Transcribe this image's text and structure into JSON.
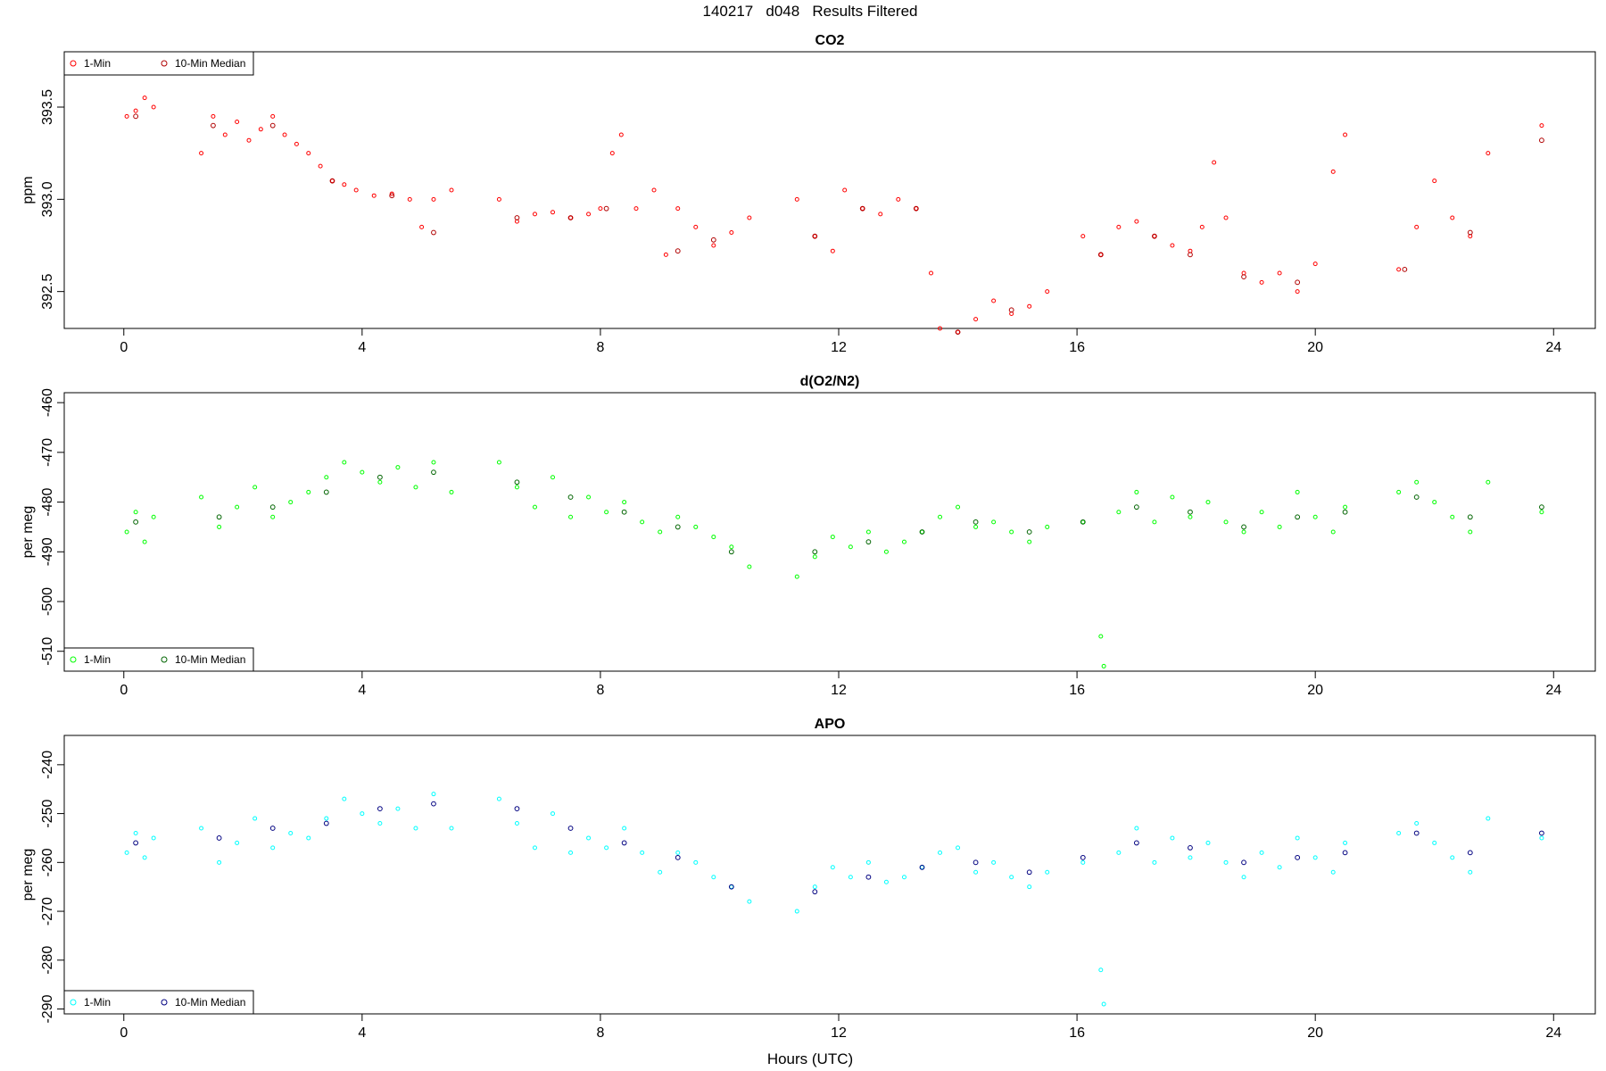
{
  "figure": {
    "title": "140217   d048   Results Filtered",
    "xlabel": "Hours (UTC)"
  },
  "chart_data": [
    {
      "type": "scatter",
      "title": "CO2",
      "ylabel": "ppm",
      "xlim": [
        -1,
        24.7
      ],
      "ylim": [
        392.3,
        393.8
      ],
      "yticks": [
        392.5,
        393.0,
        393.5
      ],
      "ytick_labels": [
        "392.5",
        "393.0",
        "393.5"
      ],
      "xticks": [
        0,
        4,
        8,
        12,
        16,
        20,
        24
      ],
      "legend": {
        "placement": "top-left",
        "entries": [
          "1-Min",
          "10-Min Median"
        ]
      },
      "series": [
        {
          "name": "1-Min",
          "color": "#ff0000",
          "x": [
            0.05,
            0.2,
            0.35,
            0.5,
            1.3,
            1.5,
            1.7,
            1.9,
            2.1,
            2.3,
            2.5,
            2.7,
            2.9,
            3.1,
            3.3,
            3.5,
            3.7,
            3.9,
            4.2,
            4.5,
            4.8,
            5.0,
            5.2,
            5.5,
            6.3,
            6.6,
            6.9,
            7.2,
            7.5,
            7.8,
            8.0,
            8.2,
            8.35,
            8.6,
            8.9,
            9.1,
            9.3,
            9.6,
            9.9,
            10.2,
            10.5,
            11.3,
            11.6,
            11.9,
            12.1,
            12.4,
            12.7,
            13.0,
            13.3,
            13.55,
            13.7,
            14.0,
            14.3,
            14.6,
            14.9,
            15.2,
            15.5,
            16.1,
            16.4,
            16.7,
            17.0,
            17.3,
            17.6,
            17.9,
            18.1,
            18.3,
            18.5,
            18.8,
            19.1,
            19.4,
            19.7,
            20.0,
            20.3,
            20.5,
            21.4,
            21.7,
            22.0,
            22.3,
            22.6,
            22.9,
            23.8
          ],
          "y": [
            393.45,
            393.48,
            393.55,
            393.5,
            393.25,
            393.45,
            393.35,
            393.42,
            393.32,
            393.38,
            393.45,
            393.35,
            393.3,
            393.25,
            393.18,
            393.1,
            393.08,
            393.05,
            393.02,
            393.03,
            393.0,
            392.85,
            393.0,
            393.05,
            393.0,
            392.88,
            392.92,
            392.93,
            392.9,
            392.92,
            392.95,
            393.25,
            393.35,
            392.95,
            393.05,
            392.7,
            392.95,
            392.85,
            392.75,
            392.82,
            392.9,
            393.0,
            392.8,
            392.72,
            393.05,
            392.95,
            392.92,
            393.0,
            392.95,
            392.6,
            392.3,
            392.28,
            392.35,
            392.45,
            392.38,
            392.42,
            392.5,
            392.8,
            392.7,
            392.85,
            392.88,
            392.8,
            392.75,
            392.72,
            392.85,
            393.2,
            392.9,
            392.6,
            392.55,
            392.6,
            392.5,
            392.65,
            393.15,
            393.35,
            392.62,
            392.85,
            393.1,
            392.9,
            392.8,
            393.25,
            393.4
          ]
        },
        {
          "name": "10-Min Median",
          "color": "#b00000",
          "x": [
            0.2,
            1.5,
            2.5,
            3.5,
            4.5,
            5.2,
            6.6,
            7.5,
            8.1,
            9.3,
            9.9,
            11.6,
            12.4,
            13.3,
            14.0,
            14.9,
            16.4,
            17.3,
            17.9,
            18.8,
            19.7,
            21.5,
            22.6,
            23.8
          ],
          "y": [
            393.45,
            393.4,
            393.4,
            393.1,
            393.02,
            392.82,
            392.9,
            392.9,
            392.95,
            392.72,
            392.78,
            392.8,
            392.95,
            392.95,
            392.28,
            392.4,
            392.7,
            392.8,
            392.7,
            392.58,
            392.55,
            392.62,
            392.82,
            393.32
          ]
        }
      ]
    },
    {
      "type": "scatter",
      "title": "d(O2/N2)",
      "ylabel": "per meg",
      "xlim": [
        -1,
        24.7
      ],
      "ylim": [
        -514,
        -458
      ],
      "yticks": [
        -510,
        -500,
        -490,
        -480,
        -470,
        -460
      ],
      "ytick_labels": [
        "-510",
        "-500",
        "-490",
        "-480",
        "-470",
        "-460"
      ],
      "xticks": [
        0,
        4,
        8,
        12,
        16,
        20,
        24
      ],
      "legend": {
        "placement": "bottom-left",
        "entries": [
          "1-Min",
          "10-Min Median"
        ]
      },
      "series": [
        {
          "name": "1-Min",
          "color": "#00ff00",
          "x": [
            0.05,
            0.2,
            0.35,
            0.5,
            1.3,
            1.6,
            1.9,
            2.2,
            2.5,
            2.8,
            3.1,
            3.4,
            3.7,
            4.0,
            4.3,
            4.6,
            4.9,
            5.2,
            5.5,
            6.3,
            6.6,
            6.9,
            7.2,
            7.5,
            7.8,
            8.1,
            8.4,
            8.7,
            9.0,
            9.3,
            9.6,
            9.9,
            10.2,
            10.5,
            11.3,
            11.6,
            11.9,
            12.2,
            12.5,
            12.8,
            13.1,
            13.4,
            13.7,
            14.0,
            14.3,
            14.6,
            14.9,
            15.2,
            15.5,
            16.1,
            16.4,
            16.45,
            16.7,
            17.0,
            17.3,
            17.6,
            17.9,
            18.2,
            18.5,
            18.8,
            19.1,
            19.4,
            19.7,
            20.0,
            20.3,
            20.5,
            21.4,
            21.7,
            22.0,
            22.3,
            22.6,
            22.9,
            23.8
          ],
          "y": [
            -486,
            -482,
            -488,
            -483,
            -479,
            -485,
            -481,
            -477,
            -483,
            -480,
            -478,
            -475,
            -472,
            -474,
            -476,
            -473,
            -477,
            -472,
            -478,
            -472,
            -477,
            -481,
            -475,
            -483,
            -479,
            -482,
            -480,
            -484,
            -486,
            -483,
            -485,
            -487,
            -489,
            -493,
            -495,
            -491,
            -487,
            -489,
            -486,
            -490,
            -488,
            -486,
            -483,
            -481,
            -485,
            -484,
            -486,
            -488,
            -485,
            -484,
            -507,
            -513,
            -482,
            -478,
            -484,
            -479,
            -483,
            -480,
            -484,
            -486,
            -482,
            -485,
            -478,
            -483,
            -486,
            -481,
            -478,
            -476,
            -480,
            -483,
            -486,
            -476,
            -482
          ]
        },
        {
          "name": "10-Min Median",
          "color": "#006400",
          "x": [
            0.2,
            1.6,
            2.5,
            3.4,
            4.3,
            5.2,
            6.6,
            7.5,
            8.4,
            9.3,
            10.2,
            11.6,
            12.5,
            13.4,
            14.3,
            15.2,
            16.1,
            17.0,
            17.9,
            18.8,
            19.7,
            20.5,
            21.7,
            22.6,
            23.8
          ],
          "y": [
            -484,
            -483,
            -481,
            -478,
            -475,
            -474,
            -476,
            -479,
            -482,
            -485,
            -490,
            -490,
            -488,
            -486,
            -484,
            -486,
            -484,
            -481,
            -482,
            -485,
            -483,
            -482,
            -479,
            -483,
            -481
          ]
        }
      ]
    },
    {
      "type": "scatter",
      "title": "APO",
      "ylabel": "per meg",
      "xlim": [
        -1,
        24.7
      ],
      "ylim": [
        -291,
        -234
      ],
      "yticks": [
        -290,
        -280,
        -270,
        -260,
        -250,
        -240
      ],
      "ytick_labels": [
        "-290",
        "-280",
        "-270",
        "-260",
        "-250",
        "-240"
      ],
      "xticks": [
        0,
        4,
        8,
        12,
        16,
        20,
        24
      ],
      "xtick_labels": [
        "0",
        "4",
        "8",
        "12",
        "16",
        "20",
        "24"
      ],
      "legend": {
        "placement": "bottom-left",
        "entries": [
          "1-Min",
          "10-Min Median"
        ]
      },
      "series": [
        {
          "name": "1-Min",
          "color": "#00ffff",
          "x": [
            0.05,
            0.2,
            0.35,
            0.5,
            1.3,
            1.6,
            1.9,
            2.2,
            2.5,
            2.8,
            3.1,
            3.4,
            3.7,
            4.0,
            4.3,
            4.6,
            4.9,
            5.2,
            5.5,
            6.3,
            6.6,
            6.9,
            7.2,
            7.5,
            7.8,
            8.1,
            8.4,
            8.7,
            9.0,
            9.3,
            9.6,
            9.9,
            10.2,
            10.5,
            11.3,
            11.6,
            11.9,
            12.2,
            12.5,
            12.8,
            13.1,
            13.4,
            13.7,
            14.0,
            14.3,
            14.6,
            14.9,
            15.2,
            15.5,
            16.1,
            16.4,
            16.45,
            16.7,
            17.0,
            17.3,
            17.6,
            17.9,
            18.2,
            18.5,
            18.8,
            19.1,
            19.4,
            19.7,
            20.0,
            20.3,
            20.5,
            21.4,
            21.7,
            22.0,
            22.3,
            22.6,
            22.9,
            23.8
          ],
          "y": [
            -258,
            -254,
            -259,
            -255,
            -253,
            -260,
            -256,
            -251,
            -257,
            -254,
            -255,
            -251,
            -247,
            -250,
            -252,
            -249,
            -253,
            -246,
            -253,
            -247,
            -252,
            -257,
            -250,
            -258,
            -255,
            -257,
            -253,
            -258,
            -262,
            -258,
            -260,
            -263,
            -265,
            -268,
            -270,
            -265,
            -261,
            -263,
            -260,
            -264,
            -263,
            -261,
            -258,
            -257,
            -262,
            -260,
            -263,
            -265,
            -262,
            -260,
            -282,
            -289,
            -258,
            -253,
            -260,
            -255,
            -259,
            -256,
            -260,
            -263,
            -258,
            -261,
            -255,
            -259,
            -262,
            -256,
            -254,
            -252,
            -256,
            -259,
            -262,
            -251,
            -255
          ]
        },
        {
          "name": "10-Min Median",
          "color": "#000080",
          "x": [
            0.2,
            1.6,
            2.5,
            3.4,
            4.3,
            5.2,
            6.6,
            7.5,
            8.4,
            9.3,
            10.2,
            11.6,
            12.5,
            13.4,
            14.3,
            15.2,
            16.1,
            17.0,
            17.9,
            18.8,
            19.7,
            20.5,
            21.7,
            22.6,
            23.8
          ],
          "y": [
            -256,
            -255,
            -253,
            -252,
            -249,
            -248,
            -249,
            -253,
            -256,
            -259,
            -265,
            -266,
            -263,
            -261,
            -260,
            -262,
            -259,
            -256,
            -257,
            -260,
            -259,
            -258,
            -254,
            -258,
            -254
          ]
        }
      ]
    }
  ]
}
